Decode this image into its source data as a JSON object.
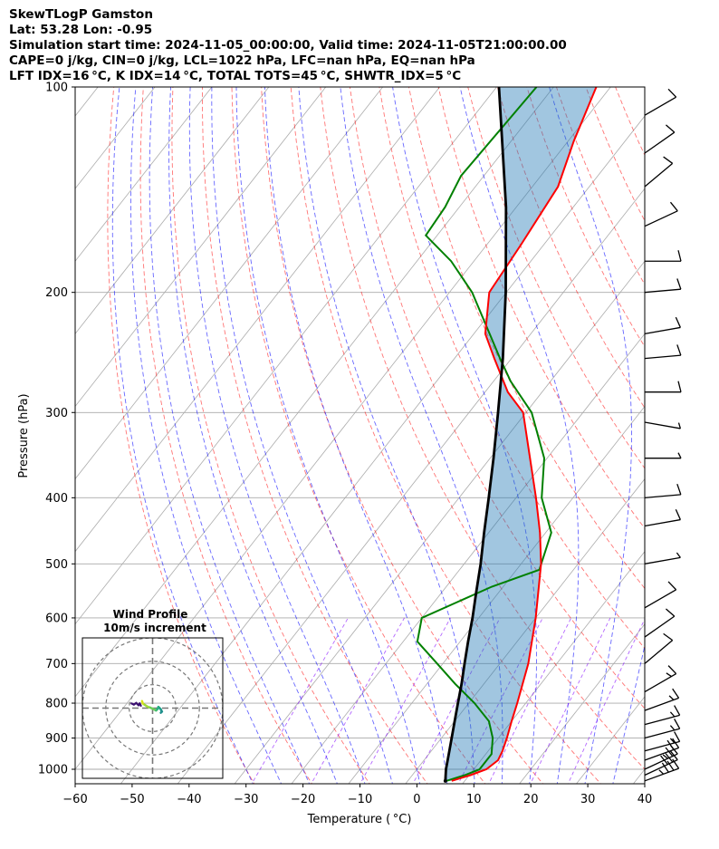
{
  "header": {
    "line1": "SkewTLogP Gamston",
    "line2": "Lat: 53.28   Lon: -0.95",
    "line3": "Simulation start time: 2024-11-05_00:00:00, Valid time: 2024-11-05T21:00:00.00",
    "line4": "CAPE=0 j/kg, CIN=0 j/kg, LCL=1022 hPa, LFC=nan hPa, EQ=nan hPa",
    "line5": "LFT IDX=16 °C, K IDX=14 °C, TOTAL TOTS=45 °C, SHWTR_IDX=5 °C"
  },
  "chart_data": {
    "type": "line",
    "xlabel": "Temperature ( °C)",
    "ylabel": "Pressure (hPa)",
    "xlim": [
      -60,
      40
    ],
    "ylim": [
      1050,
      100
    ],
    "y_log_scale": true,
    "x_ticks": [
      -60,
      -50,
      -40,
      -30,
      -20,
      -10,
      0,
      10,
      20,
      30,
      40
    ],
    "x_tick_labels": [
      "−60",
      "−50",
      "−40",
      "−30",
      "−20",
      "−10",
      "0",
      "10",
      "20",
      "30",
      "40"
    ],
    "y_ticks": [
      1000,
      900,
      800,
      700,
      600,
      500,
      400,
      300,
      200,
      100
    ],
    "y_tick_labels": [
      "1000",
      "900",
      "800",
      "700",
      "600",
      "500",
      "400",
      "300",
      "200",
      "100"
    ],
    "grid": true,
    "colors": {
      "temperature": "#ff0000",
      "dewpoint": "#008000",
      "parcel": "#000000",
      "shade": "#1f77b4",
      "dry_adiabat": "#ff0000",
      "moist_adiabat": "#0000ff",
      "mixing_ratio": "#8000ff",
      "isotherm": "#888888"
    },
    "series": [
      {
        "key": "temperature",
        "points": [
          [
            1040,
            7.7
          ],
          [
            1020,
            10.2
          ],
          [
            1000,
            12.2
          ],
          [
            970,
            13.0
          ],
          [
            940,
            12.5
          ],
          [
            900,
            11.5
          ],
          [
            850,
            10.0
          ],
          [
            800,
            8.5
          ],
          [
            700,
            5.0
          ],
          [
            600,
            0.0
          ],
          [
            500,
            -6.5
          ],
          [
            450,
            -11.0
          ],
          [
            400,
            -16.5
          ],
          [
            350,
            -23.0
          ],
          [
            300,
            -30.5
          ],
          [
            280,
            -36.0
          ],
          [
            250,
            -43.0
          ],
          [
            230,
            -48.0
          ],
          [
            200,
            -53.0
          ],
          [
            170,
            -54.0
          ],
          [
            140,
            -55.5
          ],
          [
            120,
            -59.0
          ],
          [
            100,
            -62.5
          ]
        ]
      },
      {
        "key": "dewpoint",
        "points": [
          [
            1040,
            6.8
          ],
          [
            1020,
            9.2
          ],
          [
            1000,
            11.0
          ],
          [
            950,
            11.0
          ],
          [
            900,
            9.0
          ],
          [
            850,
            6.0
          ],
          [
            800,
            1.0
          ],
          [
            750,
            -5.0
          ],
          [
            700,
            -11.0
          ],
          [
            650,
            -17.5
          ],
          [
            600,
            -20.0
          ],
          [
            540,
            -12.0
          ],
          [
            510,
            -6.0
          ],
          [
            450,
            -9.0
          ],
          [
            400,
            -15.5
          ],
          [
            350,
            -20.5
          ],
          [
            300,
            -29.0
          ],
          [
            270,
            -37.0
          ],
          [
            250,
            -42.0
          ],
          [
            200,
            -56.0
          ],
          [
            180,
            -64.0
          ],
          [
            165,
            -72.0
          ],
          [
            150,
            -72.5
          ],
          [
            135,
            -74.0
          ],
          [
            100,
            -73.0
          ]
        ]
      },
      {
        "key": "parcel",
        "points": [
          [
            1040,
            6.6
          ],
          [
            1000,
            5.1
          ],
          [
            950,
            3.5
          ],
          [
            900,
            1.8
          ],
          [
            850,
            0.0
          ],
          [
            800,
            -1.9
          ],
          [
            750,
            -3.9
          ],
          [
            700,
            -6.2
          ],
          [
            650,
            -8.6
          ],
          [
            600,
            -11.1
          ],
          [
            550,
            -14.0
          ],
          [
            500,
            -17.1
          ],
          [
            450,
            -20.8
          ],
          [
            400,
            -24.8
          ],
          [
            350,
            -29.4
          ],
          [
            300,
            -34.9
          ],
          [
            250,
            -41.5
          ],
          [
            200,
            -50.1
          ],
          [
            150,
            -61.8
          ],
          [
            100,
            -79.6
          ]
        ]
      }
    ],
    "barbs": [
      {
        "p": 1040,
        "speed": 35,
        "dir": 250
      },
      {
        "p": 1020,
        "speed": 30,
        "dir": 245
      },
      {
        "p": 1000,
        "speed": 25,
        "dir": 245
      },
      {
        "p": 970,
        "speed": 20,
        "dir": 250
      },
      {
        "p": 940,
        "speed": 15,
        "dir": 255
      },
      {
        "p": 900,
        "speed": 15,
        "dir": 255
      },
      {
        "p": 860,
        "speed": 15,
        "dir": 255
      },
      {
        "p": 820,
        "speed": 15,
        "dir": 250
      },
      {
        "p": 770,
        "speed": 15,
        "dir": 240
      },
      {
        "p": 700,
        "speed": 10,
        "dir": 230
      },
      {
        "p": 640,
        "speed": 10,
        "dir": 235
      },
      {
        "p": 580,
        "speed": 10,
        "dir": 240
      },
      {
        "p": 500,
        "speed": 5,
        "dir": 260
      },
      {
        "p": 440,
        "speed": 10,
        "dir": 260
      },
      {
        "p": 400,
        "speed": 10,
        "dir": 265
      },
      {
        "p": 350,
        "speed": 5,
        "dir": 270
      },
      {
        "p": 310,
        "speed": 5,
        "dir": 280
      },
      {
        "p": 280,
        "speed": 10,
        "dir": 270
      },
      {
        "p": 250,
        "speed": 10,
        "dir": 265
      },
      {
        "p": 230,
        "speed": 10,
        "dir": 260
      },
      {
        "p": 200,
        "speed": 10,
        "dir": 265
      },
      {
        "p": 180,
        "speed": 10,
        "dir": 270
      },
      {
        "p": 160,
        "speed": 10,
        "dir": 245
      },
      {
        "p": 140,
        "speed": 10,
        "dir": 230
      },
      {
        "p": 125,
        "speed": 10,
        "dir": 235
      },
      {
        "p": 110,
        "speed": 10,
        "dir": 240
      }
    ],
    "hodograph": {
      "title_line1": "Wind Profile",
      "title_line2": "10m/s increment",
      "range": 30,
      "rings": [
        10,
        20,
        30
      ],
      "points": [
        [
          -4.5,
          3.0
        ],
        [
          -4.2,
          2.0
        ],
        [
          -3.5,
          1.5
        ],
        [
          -2.0,
          0.5
        ],
        [
          -1.0,
          0.2
        ],
        [
          0.5,
          -0.5
        ],
        [
          1.5,
          -1.0
        ],
        [
          2.0,
          -0.5
        ],
        [
          2.5,
          0.5
        ],
        [
          3.0,
          0.0
        ],
        [
          3.5,
          -0.5
        ],
        [
          3.8,
          -1.2
        ],
        [
          4.0,
          -1.5
        ],
        [
          3.5,
          -2.0
        ]
      ],
      "inner_points": [
        [
          -9.0,
          2.0
        ],
        [
          -8.0,
          1.5
        ],
        [
          -7.0,
          2.2
        ],
        [
          -6.0,
          1.2
        ],
        [
          -5.5,
          2.0
        ],
        [
          -5.0,
          1.0
        ]
      ]
    }
  }
}
